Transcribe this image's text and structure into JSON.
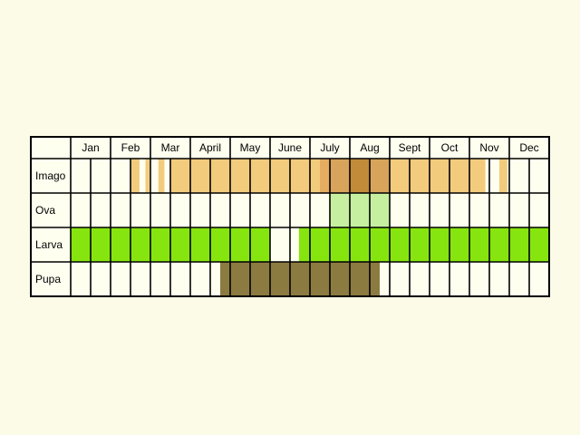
{
  "chart_data": {
    "type": "heatmap",
    "months": [
      "Jan",
      "Feb",
      "Mar",
      "April",
      "May",
      "June",
      "July",
      "Aug",
      "Sept",
      "Oct",
      "Nov",
      "Dec"
    ],
    "columns_per_month": 2,
    "rows": [
      {
        "label": "Imago",
        "spans": [
          [
            3.0,
            3.45,
            "#f3cb7c"
          ],
          [
            3.75,
            3.95,
            "#f3cb7c"
          ],
          [
            4.4,
            4.7,
            "#f3cb7c"
          ],
          [
            5.0,
            12.5,
            "#f3cb7c"
          ],
          [
            12.5,
            13.0,
            "#e4ad62"
          ],
          [
            13.0,
            14.0,
            "#d8a35a"
          ],
          [
            14.0,
            15.0,
            "#c18b3a"
          ],
          [
            15.0,
            16.0,
            "#d8a35a"
          ],
          [
            16.0,
            20.8,
            "#f3cb7c"
          ],
          [
            21.5,
            21.9,
            "#f3cb7c"
          ]
        ]
      },
      {
        "label": "Ova",
        "spans": [
          [
            13.0,
            16.0,
            "#c6f0a0"
          ]
        ]
      },
      {
        "label": "Larva",
        "spans": [
          [
            0.0,
            10.0,
            "#87e50f"
          ],
          [
            11.45,
            24.0,
            "#87e50f"
          ]
        ]
      },
      {
        "label": "Pupa",
        "spans": [
          [
            7.5,
            15.0,
            "#8c7b41"
          ],
          [
            15.0,
            15.5,
            "#8c7b41"
          ]
        ]
      }
    ],
    "colors": {
      "background": "#fcfbe8",
      "cell": "#fffff0",
      "grid": "#000000"
    }
  }
}
